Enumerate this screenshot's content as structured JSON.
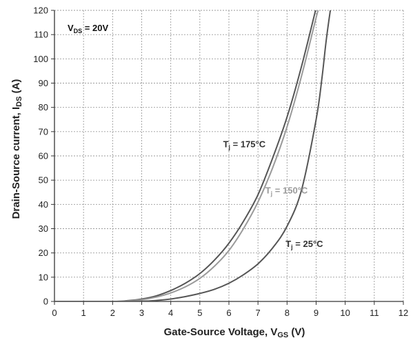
{
  "chart_data": {
    "type": "line",
    "xlabel": "Gate-Source Voltage, V",
    "xlabel_sub": "GS",
    "xlabel_unit": " (V)",
    "ylabel": "Drain-Source current, I",
    "ylabel_sub": "DS",
    "ylabel_unit": "  (A)",
    "xlim": [
      0,
      12
    ],
    "ylim": [
      0,
      120
    ],
    "x_ticks": [
      0,
      1,
      2,
      3,
      4,
      5,
      6,
      7,
      8,
      9,
      10,
      11,
      12
    ],
    "y_ticks": [
      0,
      10,
      20,
      30,
      40,
      50,
      60,
      70,
      80,
      90,
      100,
      110,
      120
    ],
    "grid": true,
    "condition_label": {
      "main": "V",
      "sub": "DS",
      "rest": " = 20V"
    },
    "series": [
      {
        "label_main": "T",
        "label_sub": "j",
        "label_rest": " = 175°C",
        "color": "#555555",
        "points": [
          [
            0,
            0
          ],
          [
            2,
            0
          ],
          [
            2.5,
            0.3
          ],
          [
            3,
            1
          ],
          [
            3.5,
            2.3
          ],
          [
            4,
            4.5
          ],
          [
            4.5,
            7.5
          ],
          [
            5,
            11.5
          ],
          [
            5.5,
            17
          ],
          [
            6,
            24
          ],
          [
            6.5,
            33
          ],
          [
            7,
            44
          ],
          [
            7.5,
            59
          ],
          [
            8,
            76
          ],
          [
            8.5,
            97
          ],
          [
            9,
            121
          ]
        ]
      },
      {
        "label_main": "T",
        "label_sub": "j",
        "label_rest": " = 150°C",
        "color": "#9a9a9a",
        "points": [
          [
            0,
            0
          ],
          [
            2,
            0
          ],
          [
            2.5,
            0.2
          ],
          [
            3,
            0.7
          ],
          [
            3.5,
            1.8
          ],
          [
            4,
            3.5
          ],
          [
            4.5,
            6
          ],
          [
            5,
            9.5
          ],
          [
            5.5,
            14.5
          ],
          [
            6,
            21
          ],
          [
            6.5,
            30
          ],
          [
            7,
            41
          ],
          [
            7.5,
            55
          ],
          [
            8,
            72
          ],
          [
            8.5,
            93
          ],
          [
            9,
            117
          ],
          [
            9.1,
            121
          ]
        ]
      },
      {
        "label_main": "T",
        "label_sub": "j",
        "label_rest": " = 25°C",
        "color": "#555555",
        "points": [
          [
            0,
            0
          ],
          [
            2,
            0
          ],
          [
            3,
            0.1
          ],
          [
            3.5,
            0.4
          ],
          [
            4,
            1
          ],
          [
            4.5,
            2
          ],
          [
            5,
            3.3
          ],
          [
            5.5,
            5
          ],
          [
            6,
            7.5
          ],
          [
            6.5,
            11
          ],
          [
            7,
            15.5
          ],
          [
            7.5,
            22
          ],
          [
            8,
            31
          ],
          [
            8.5,
            46
          ],
          [
            9,
            75
          ],
          [
            9.2,
            92
          ],
          [
            9.35,
            108
          ],
          [
            9.5,
            121
          ]
        ]
      }
    ]
  }
}
